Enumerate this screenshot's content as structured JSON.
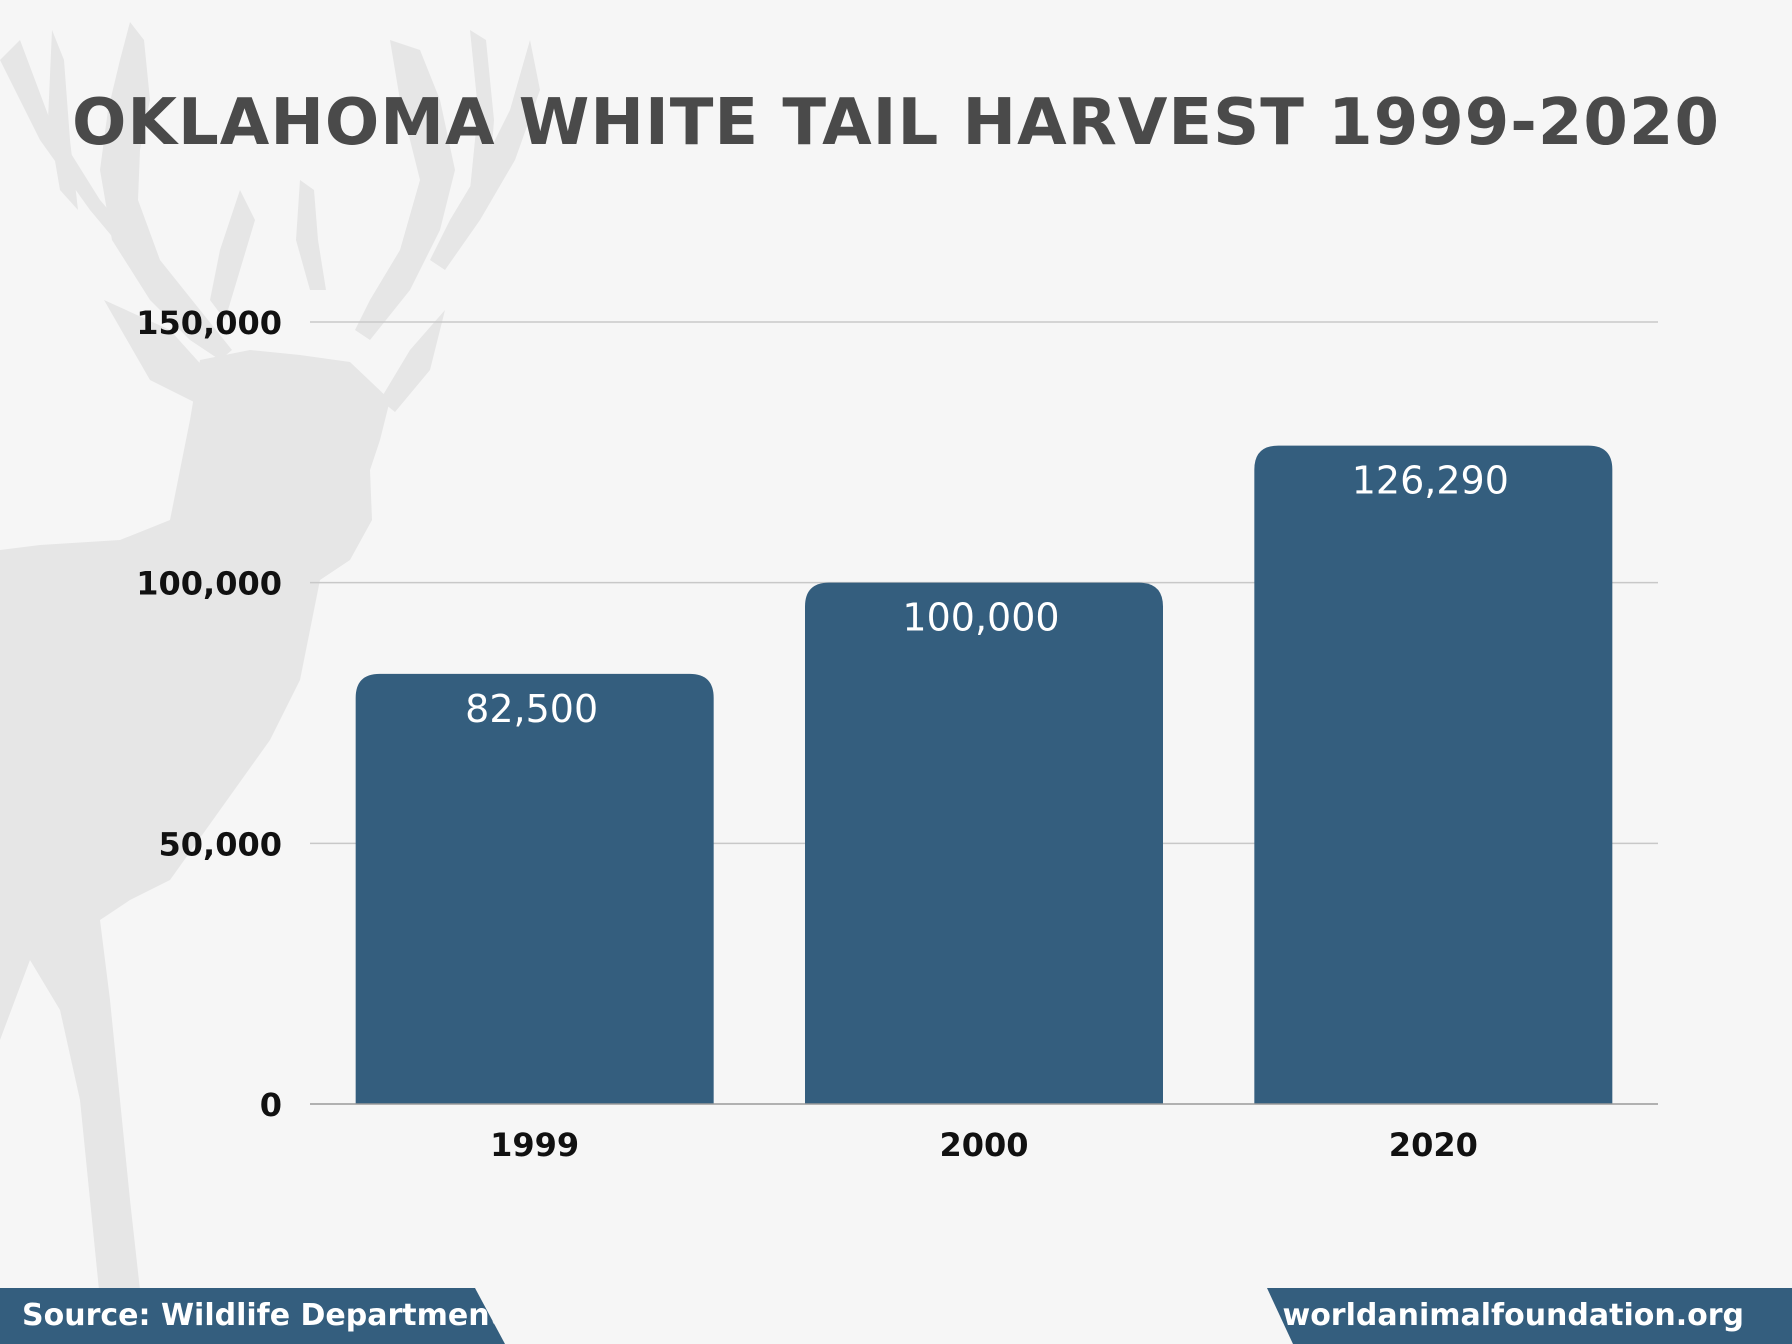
{
  "title": "OKLAHOMA WHITE TAIL HARVEST 1999-2020",
  "footer": {
    "source": "Source: Wildlife Department",
    "website": "worldanimalfoundation.org"
  },
  "colors": {
    "bar": "#345e7e",
    "title": "#4a4a4a",
    "gridline": "#c8c8c8",
    "silhouette": "#e6e6e6",
    "background": "#f6f6f6"
  },
  "icons": {
    "background_image": "deer-silhouette-icon"
  },
  "chart_data": {
    "type": "bar",
    "title": "OKLAHOMA WHITE TAIL HARVEST 1999-2020",
    "categories": [
      "1999",
      "2000",
      "2020"
    ],
    "values": [
      82500,
      100000,
      126290
    ],
    "value_labels": [
      "82,500",
      "100,000",
      "126,290"
    ],
    "xlabel": "",
    "ylabel": "",
    "ylim": [
      0,
      150000
    ],
    "yticks": [
      0,
      50000,
      100000,
      150000
    ],
    "ytick_labels": [
      "0",
      "50,000",
      "100,000",
      "150,000"
    ],
    "grid": true,
    "legend": "none"
  }
}
